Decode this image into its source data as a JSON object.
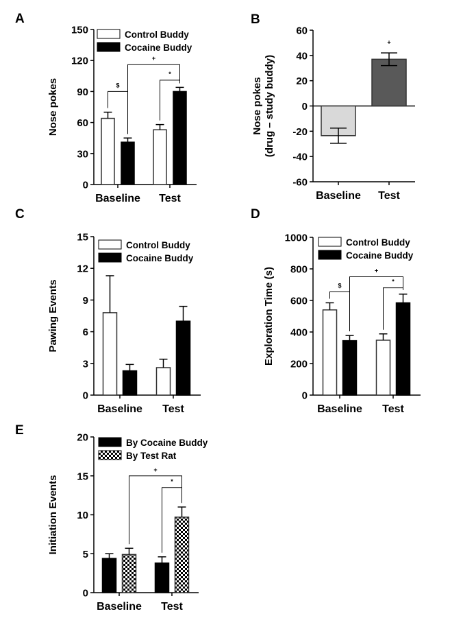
{
  "chart_data": [
    {
      "panel": "A",
      "type": "bar",
      "title": "",
      "xlabel": "",
      "ylabel": "Nose pokes",
      "ylim": [
        0,
        150
      ],
      "yticks": [
        0,
        30,
        60,
        90,
        120,
        150
      ],
      "categories": [
        "Baseline",
        "Test"
      ],
      "legend_position": "top-right",
      "series": [
        {
          "name": "Control Buddy",
          "fill": "#ffffff",
          "pattern": "none",
          "values": [
            64,
            53
          ],
          "errors": [
            6,
            5
          ]
        },
        {
          "name": "Cocaine Buddy",
          "fill": "#000000",
          "pattern": "none",
          "values": [
            41,
            90
          ],
          "errors": [
            4,
            4
          ]
        }
      ],
      "annotations": [
        {
          "symbol": "$",
          "between": [
            "Baseline:Control Buddy",
            "Baseline:Cocaine Buddy"
          ],
          "level": 90
        },
        {
          "symbol": "+",
          "between": [
            "Baseline:Cocaine Buddy",
            "Test:Cocaine Buddy"
          ],
          "level": 116
        },
        {
          "symbol": "*",
          "between": [
            "Test:Control Buddy",
            "Test:Cocaine Buddy"
          ],
          "level": 101
        }
      ],
      "grid": false
    },
    {
      "panel": "B",
      "type": "bar",
      "title": "",
      "xlabel": "",
      "ylabel": "Nose pokes (drug – study buddy)",
      "ylabel_lines": [
        "Nose pokes",
        "(drug – study buddy)"
      ],
      "ylim": [
        -60,
        60
      ],
      "yticks": [
        -60,
        -40,
        -20,
        0,
        20,
        40,
        60
      ],
      "categories": [
        "Baseline",
        "Test"
      ],
      "values": [
        -23.5,
        37
      ],
      "errors": [
        6,
        5
      ],
      "fills": [
        "#d9d9d9",
        "#595959"
      ],
      "zero_line": "dotted",
      "annotations": [
        {
          "symbol": "+",
          "category": "Test",
          "level": 49
        }
      ],
      "grid": false
    },
    {
      "panel": "C",
      "type": "bar",
      "title": "",
      "xlabel": "",
      "ylabel": "Pawing Events",
      "ylim": [
        0,
        15
      ],
      "yticks": [
        0,
        3,
        6,
        9,
        12,
        15
      ],
      "categories": [
        "Baseline",
        "Test"
      ],
      "legend_position": "top-right",
      "series": [
        {
          "name": "Control Buddy",
          "fill": "#ffffff",
          "pattern": "none",
          "values": [
            7.8,
            2.6
          ],
          "errors": [
            3.5,
            0.8
          ]
        },
        {
          "name": "Cocaine Buddy",
          "fill": "#000000",
          "pattern": "none",
          "values": [
            2.3,
            7.0
          ],
          "errors": [
            0.6,
            1.4
          ]
        }
      ],
      "annotations": [],
      "grid": false
    },
    {
      "panel": "D",
      "type": "bar",
      "title": "",
      "xlabel": "",
      "ylabel": "Exploration Time (s)",
      "ylim": [
        0,
        1000
      ],
      "yticks": [
        0,
        200,
        400,
        600,
        800,
        1000
      ],
      "categories": [
        "Baseline",
        "Test"
      ],
      "legend_position": "top-right",
      "series": [
        {
          "name": "Control Buddy",
          "fill": "#ffffff",
          "pattern": "none",
          "values": [
            540,
            348
          ],
          "errors": [
            45,
            40
          ]
        },
        {
          "name": "Cocaine Buddy",
          "fill": "#000000",
          "pattern": "none",
          "values": [
            345,
            585
          ],
          "errors": [
            33,
            55
          ]
        }
      ],
      "annotations": [
        {
          "symbol": "$",
          "between": [
            "Baseline:Control Buddy",
            "Baseline:Cocaine Buddy"
          ],
          "level": 655
        },
        {
          "symbol": "+",
          "between": [
            "Baseline:Cocaine Buddy",
            "Test:Cocaine Buddy"
          ],
          "level": 750
        },
        {
          "symbol": "*",
          "between": [
            "Test:Control Buddy",
            "Test:Cocaine Buddy"
          ],
          "level": 680
        }
      ],
      "grid": false
    },
    {
      "panel": "E",
      "type": "bar",
      "title": "",
      "xlabel": "",
      "ylabel": "Initiation Events",
      "ylim": [
        0,
        20
      ],
      "yticks": [
        0,
        5,
        10,
        15,
        20
      ],
      "categories": [
        "Baseline",
        "Test"
      ],
      "legend_position": "top-right",
      "series": [
        {
          "name": "By Cocaine Buddy",
          "fill": "#000000",
          "pattern": "none",
          "values": [
            4.4,
            3.8
          ],
          "errors": [
            0.6,
            0.8
          ]
        },
        {
          "name": "By Test Rat",
          "fill": "#ffffff",
          "pattern": "checker",
          "values": [
            4.9,
            9.7
          ],
          "errors": [
            0.8,
            1.3
          ]
        }
      ],
      "annotations": [
        {
          "symbol": "+",
          "between": [
            "Baseline:By Test Rat",
            "Test:By Test Rat"
          ],
          "level": 15
        },
        {
          "symbol": "*",
          "between": [
            "Test:By Cocaine Buddy",
            "Test:By Test Rat"
          ],
          "level": 13.5
        }
      ],
      "grid": false
    }
  ]
}
